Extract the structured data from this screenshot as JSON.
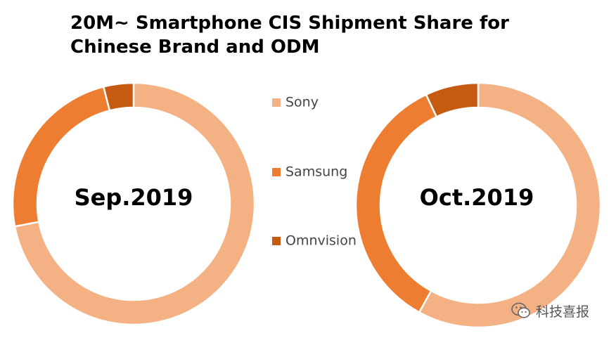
{
  "title": "20M~ Smartphone CIS Shipment Share for Chinese Brand and ODM",
  "watermark": {
    "icon": "wechat-icon",
    "text": "科技喜报"
  },
  "colors": {
    "Sony": "#F4B183",
    "Samsung": "#ED7D31",
    "Omnvision": "#C55A11"
  },
  "chart_data": [
    {
      "type": "pie",
      "center_label": "Sep.2019",
      "categories": [
        "Sony",
        "Samsung",
        "Omnvision"
      ],
      "values": [
        72,
        24,
        4
      ],
      "legend": [
        "Sony",
        "Samsung",
        "Omnvision"
      ],
      "legend_position": "right"
    },
    {
      "type": "pie",
      "center_label": "Oct.2019",
      "categories": [
        "Sony",
        "Samsung",
        "Omnvision"
      ],
      "values": [
        58,
        35,
        7
      ]
    }
  ]
}
